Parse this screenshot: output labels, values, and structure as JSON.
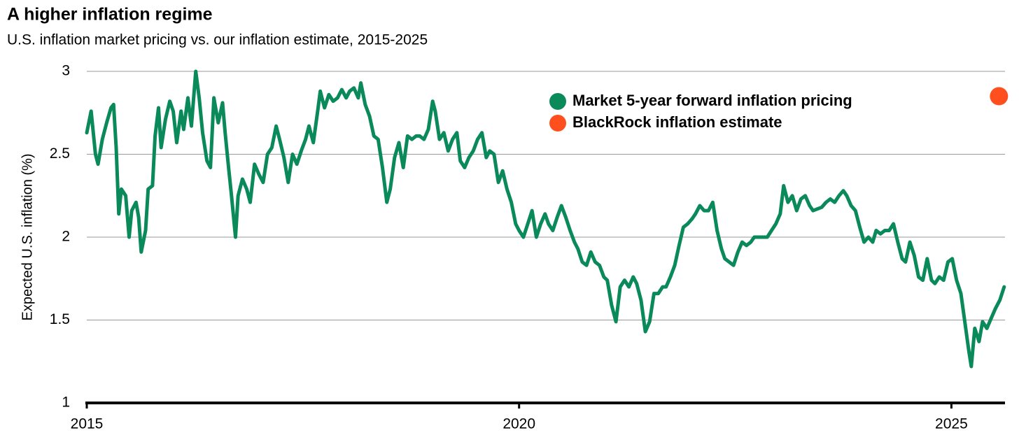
{
  "chart_data": {
    "type": "line",
    "title": "A higher inflation regime",
    "subtitle": "U.S. inflation market pricing vs. our inflation estimate, 2015-2025",
    "y_label": "Expected U.S. inflation (%)",
    "xlim": [
      2015,
      2025.62
    ],
    "xticks": [
      2015,
      2020,
      2025
    ],
    "ylim": [
      1,
      3
    ],
    "yticks": [
      1,
      1.5,
      2,
      2.5,
      3
    ],
    "grid": true,
    "series": [
      {
        "name": "Market 5-year forward inflation pricing",
        "color": "#0a8a5a",
        "x": [
          2015,
          2015.05,
          2015.1,
          2015.13,
          2015.18,
          2015.23,
          2015.28,
          2015.31,
          2015.34,
          2015.37,
          2015.4,
          2015.45,
          2015.49,
          2015.52,
          2015.57,
          2015.6,
          2015.63,
          2015.68,
          2015.71,
          2015.76,
          2015.79,
          2015.83,
          2015.86,
          2015.91,
          2015.96,
          2016.0,
          2016.04,
          2016.09,
          2016.12,
          2016.17,
          2016.21,
          2016.26,
          2016.3,
          2016.34,
          2016.39,
          2016.43,
          2016.47,
          2016.52,
          2016.57,
          2016.6,
          2016.64,
          2016.67,
          2016.72,
          2016.75,
          2016.8,
          2016.85,
          2016.89,
          2016.94,
          2016.99,
          2017.04,
          2017.09,
          2017.14,
          2017.19,
          2017.23,
          2017.28,
          2017.33,
          2017.38,
          2017.43,
          2017.48,
          2017.53,
          2017.57,
          2017.62,
          2017.67,
          2017.7,
          2017.75,
          2017.8,
          2017.85,
          2017.9,
          2017.95,
          2018.0,
          2018.04,
          2018.09,
          2018.14,
          2018.17,
          2018.22,
          2018.27,
          2018.32,
          2018.37,
          2018.42,
          2018.47,
          2018.51,
          2018.56,
          2018.61,
          2018.66,
          2018.71,
          2018.76,
          2018.81,
          2018.85,
          2018.9,
          2018.95,
          2019.0,
          2019.03,
          2019.08,
          2019.13,
          2019.18,
          2019.23,
          2019.28,
          2019.32,
          2019.37,
          2019.42,
          2019.47,
          2019.52,
          2019.57,
          2019.62,
          2019.66,
          2019.71,
          2019.76,
          2019.81,
          2019.86,
          2019.91,
          2019.96,
          2020.0,
          2020.05,
          2020.1,
          2020.15,
          2020.2,
          2020.25,
          2020.3,
          2020.34,
          2020.39,
          2020.44,
          2020.49,
          2020.54,
          2020.59,
          2020.64,
          2020.68,
          2020.73,
          2020.78,
          2020.83,
          2020.88,
          2020.93,
          2020.98,
          2021.02,
          2021.07,
          2021.12,
          2021.17,
          2021.22,
          2021.27,
          2021.32,
          2021.36,
          2021.41,
          2021.46,
          2021.51,
          2021.56,
          2021.61,
          2021.66,
          2021.7,
          2021.75,
          2021.8,
          2021.85,
          2021.9,
          2021.95,
          2022.0,
          2022.04,
          2022.09,
          2022.14,
          2022.19,
          2022.24,
          2022.29,
          2022.34,
          2022.38,
          2022.43,
          2022.48,
          2022.53,
          2022.58,
          2022.63,
          2022.68,
          2022.72,
          2022.77,
          2022.82,
          2022.87,
          2022.92,
          2022.97,
          2023.02,
          2023.06,
          2023.11,
          2023.16,
          2023.21,
          2023.26,
          2023.31,
          2023.36,
          2023.4,
          2023.45,
          2023.5,
          2023.55,
          2023.6,
          2023.65,
          2023.7,
          2023.75,
          2023.79,
          2023.84,
          2023.89,
          2023.94,
          2023.99,
          2024.04,
          2024.09,
          2024.13,
          2024.18,
          2024.23,
          2024.28,
          2024.33,
          2024.38,
          2024.43,
          2024.47,
          2024.52,
          2024.57,
          2024.62,
          2024.67,
          2024.72,
          2024.77,
          2024.81,
          2024.86,
          2024.91,
          2024.96,
          2025.01,
          2025.06,
          2025.11,
          2025.15,
          2025.2,
          2025.23,
          2025.27,
          2025.32,
          2025.36,
          2025.41,
          2025.46,
          2025.51,
          2025.56,
          2025.61
        ],
        "values": [
          2.63,
          2.76,
          2.5,
          2.44,
          2.59,
          2.69,
          2.78,
          2.8,
          2.54,
          2.14,
          2.29,
          2.25,
          2.0,
          2.16,
          2.21,
          2.12,
          1.91,
          2.04,
          2.29,
          2.31,
          2.61,
          2.78,
          2.54,
          2.71,
          2.82,
          2.76,
          2.57,
          2.76,
          2.65,
          2.84,
          2.67,
          3.0,
          2.84,
          2.63,
          2.46,
          2.42,
          2.84,
          2.69,
          2.81,
          2.63,
          2.42,
          2.27,
          2.0,
          2.25,
          2.35,
          2.29,
          2.21,
          2.44,
          2.38,
          2.33,
          2.5,
          2.54,
          2.67,
          2.59,
          2.48,
          2.33,
          2.5,
          2.44,
          2.52,
          2.59,
          2.67,
          2.57,
          2.76,
          2.88,
          2.78,
          2.86,
          2.82,
          2.84,
          2.89,
          2.84,
          2.88,
          2.9,
          2.84,
          2.93,
          2.8,
          2.73,
          2.61,
          2.59,
          2.42,
          2.21,
          2.29,
          2.48,
          2.57,
          2.42,
          2.61,
          2.59,
          2.61,
          2.61,
          2.59,
          2.65,
          2.82,
          2.76,
          2.59,
          2.63,
          2.52,
          2.59,
          2.63,
          2.46,
          2.42,
          2.48,
          2.52,
          2.59,
          2.63,
          2.48,
          2.52,
          2.5,
          2.33,
          2.4,
          2.29,
          2.21,
          2.08,
          2.04,
          2.0,
          2.08,
          2.16,
          2.0,
          2.08,
          2.14,
          2.08,
          2.04,
          2.12,
          2.19,
          2.12,
          2.04,
          1.97,
          1.93,
          1.85,
          1.83,
          1.91,
          1.85,
          1.83,
          1.76,
          1.74,
          1.59,
          1.49,
          1.7,
          1.74,
          1.7,
          1.76,
          1.72,
          1.62,
          1.43,
          1.49,
          1.66,
          1.66,
          1.7,
          1.7,
          1.76,
          1.83,
          1.95,
          2.06,
          2.08,
          2.11,
          2.14,
          2.19,
          2.16,
          2.16,
          2.21,
          2.04,
          1.93,
          1.87,
          1.85,
          1.83,
          1.91,
          1.97,
          1.95,
          1.97,
          2.0,
          2.0,
          2.0,
          2.0,
          2.04,
          2.08,
          2.14,
          2.31,
          2.21,
          2.25,
          2.16,
          2.23,
          2.25,
          2.19,
          2.16,
          2.17,
          2.18,
          2.21,
          2.23,
          2.21,
          2.25,
          2.28,
          2.25,
          2.19,
          2.16,
          2.06,
          1.97,
          2.0,
          1.97,
          2.04,
          2.02,
          2.04,
          2.04,
          2.08,
          1.97,
          1.87,
          1.85,
          1.97,
          1.89,
          1.76,
          1.74,
          1.87,
          1.74,
          1.72,
          1.76,
          1.74,
          1.85,
          1.87,
          1.74,
          1.66,
          1.51,
          1.32,
          1.22,
          1.45,
          1.37,
          1.49,
          1.45,
          1.51,
          1.57,
          1.62,
          1.7
        ]
      },
      {
        "name": "BlackRock inflation estimate",
        "color": "#ff4f1f",
        "x": [
          2025.55
        ],
        "values": [
          2.85
        ]
      }
    ]
  }
}
